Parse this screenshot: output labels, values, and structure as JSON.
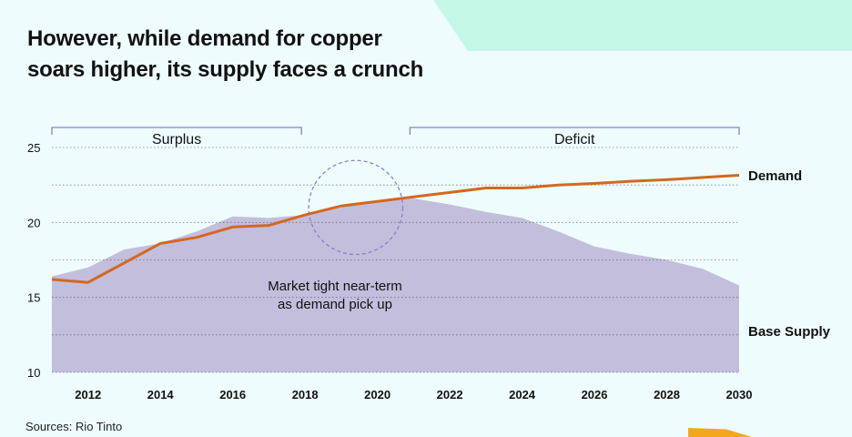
{
  "title": {
    "line1": "However, while demand for copper",
    "line2_prefix": "soars higher, its ",
    "line2_emphasis": "supply",
    "line2_suffix": " faces a crunch"
  },
  "source": "Sources: Rio Tinto",
  "colors": {
    "background": "#eefcfd",
    "accent_shape": "#c4f7e5",
    "demand_line": "#d2691e",
    "supply_area": "#c3bedc",
    "bracket": "#8a80c2",
    "circle": "#8a80c2",
    "grid": "#555555",
    "logo": "#f4a71d"
  },
  "chart_data": {
    "type": "area",
    "x": [
      2011,
      2012,
      2013,
      2014,
      2015,
      2016,
      2017,
      2018,
      2019,
      2020,
      2021,
      2022,
      2023,
      2024,
      2025,
      2026,
      2027,
      2028,
      2029,
      2030
    ],
    "series": [
      {
        "name": "Base Supply",
        "kind": "area",
        "values": [
          16.4,
          17.0,
          18.2,
          18.6,
          19.4,
          20.4,
          20.3,
          20.5,
          21.0,
          21.4,
          21.6,
          21.2,
          20.7,
          20.3,
          19.4,
          18.4,
          17.9,
          17.5,
          16.9,
          15.8
        ]
      },
      {
        "name": "Demand",
        "kind": "line",
        "values": [
          16.2,
          16.0,
          17.3,
          18.6,
          19.0,
          19.7,
          19.8,
          20.5,
          21.1,
          21.4,
          21.7,
          22.0,
          22.3,
          22.3,
          22.5,
          22.6,
          22.75,
          22.85,
          23.0,
          23.15
        ]
      }
    ],
    "xticks": [
      "2012",
      "2014",
      "2016",
      "2018",
      "2020",
      "2022",
      "2024",
      "2026",
      "2028",
      "2030"
    ],
    "xtick_values": [
      2012,
      2014,
      2016,
      2018,
      2020,
      2022,
      2024,
      2026,
      2028,
      2030
    ],
    "yticks": [
      "10",
      "15",
      "20",
      "25"
    ],
    "ytick_values": [
      10,
      15,
      20,
      25
    ],
    "gridlines": [
      10,
      12.5,
      15,
      17.5,
      20,
      22.5,
      25
    ],
    "xlim": [
      2011,
      2030
    ],
    "ylim": [
      10,
      25
    ],
    "grid": true,
    "periods": [
      {
        "label": "Surplus",
        "from": 2011,
        "to": 2017.9
      },
      {
        "label": "Deficit",
        "from": 2020.9,
        "to": 2030
      }
    ],
    "annotation": {
      "line1": "Market tight near-term",
      "line2": "as demand pick up",
      "circle_center": [
        2019.4,
        21.0
      ],
      "circle_radius_years": 1.3
    },
    "legend": "right"
  }
}
